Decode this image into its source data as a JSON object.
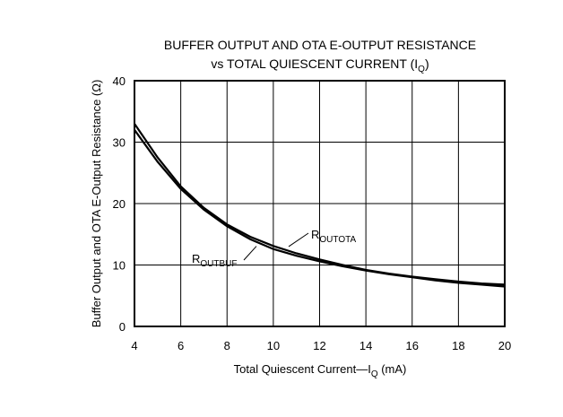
{
  "chart_data": {
    "type": "line",
    "title_line1": "BUFFER OUTPUT AND OTA E-OUTPUT RESISTANCE",
    "title_line2_prefix": "vs TOTAL QUIESCENT CURRENT (I",
    "title_line2_sub": "Q",
    "title_line2_suffix": ")",
    "xlabel_prefix": "Total Quiescent Current—I",
    "xlabel_sub": "Q",
    "xlabel_suffix": " (mA)",
    "ylabel": "Buffer Output and OTA E-Output Resistance (Ω)",
    "xlim": [
      4,
      20
    ],
    "ylim": [
      0,
      40
    ],
    "xticks": [
      "4",
      "6",
      "8",
      "10",
      "12",
      "14",
      "16",
      "18",
      "20"
    ],
    "yticks": [
      "0",
      "10",
      "20",
      "30",
      "40"
    ],
    "grid": true,
    "series": [
      {
        "name_main": "R",
        "name_sub": "OUTOTA",
        "x": [
          4,
          5,
          6,
          7,
          8,
          9,
          10,
          11,
          12,
          13,
          14,
          15,
          16,
          17,
          18,
          19,
          20
        ],
        "y": [
          33,
          27.5,
          22.8,
          19.3,
          16.6,
          14.6,
          13.1,
          11.9,
          10.9,
          10.0,
          9.2,
          8.6,
          8.1,
          7.7,
          7.3,
          7.0,
          6.8
        ]
      },
      {
        "name_main": "R",
        "name_sub": "OUTBUF",
        "x": [
          4,
          5,
          6,
          7,
          8,
          9,
          10,
          11,
          12,
          13,
          14,
          15,
          16,
          17,
          18,
          19,
          20
        ],
        "y": [
          32,
          26.8,
          22.4,
          19.0,
          16.3,
          14.2,
          12.6,
          11.5,
          10.6,
          9.8,
          9.1,
          8.5,
          8.0,
          7.5,
          7.1,
          6.8,
          6.5
        ]
      }
    ]
  }
}
